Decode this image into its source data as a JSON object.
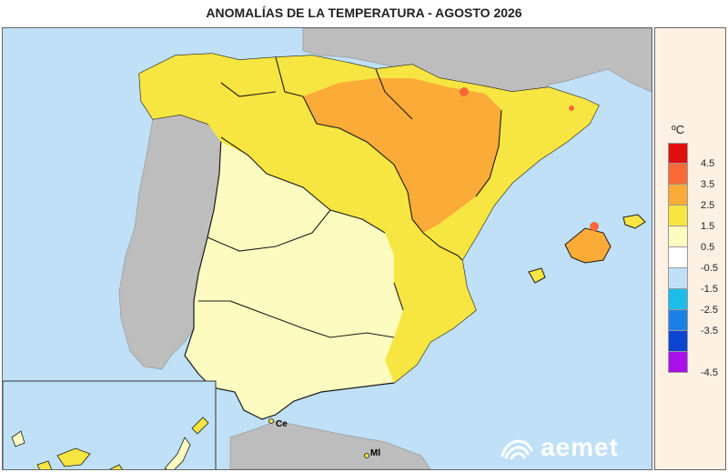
{
  "title": "ANOMALÍAS DE LA TEMPERATURA - AGOSTO 2026",
  "legend": {
    "unit": "ºC",
    "steps": [
      {
        "color": "#e10f0f",
        "label": "4.5"
      },
      {
        "color": "#fb6a36",
        "label": "3.5"
      },
      {
        "color": "#fbab38",
        "label": "2.5"
      },
      {
        "color": "#f7e541",
        "label": "1.5"
      },
      {
        "color": "#fdfcc0",
        "label": "0.5"
      },
      {
        "color": "#ffffff",
        "label": "-0.5"
      },
      {
        "color": "#bfe0f7",
        "label": "-1.5"
      },
      {
        "color": "#1cbde9",
        "label": "-2.5"
      },
      {
        "color": "#1a82e6",
        "label": "-3.5"
      },
      {
        "color": "#0b45d2",
        "label": ""
      },
      {
        "color": "#a911e8",
        "label": "-4.5"
      }
    ]
  },
  "cities": {
    "ceuta": "Ce",
    "melilla": "Ml"
  },
  "logo": "aemet",
  "colors": {
    "sea": "#bfe0f7",
    "foreign_land": "#bdbdbd",
    "border": "#1a1a1a"
  }
}
